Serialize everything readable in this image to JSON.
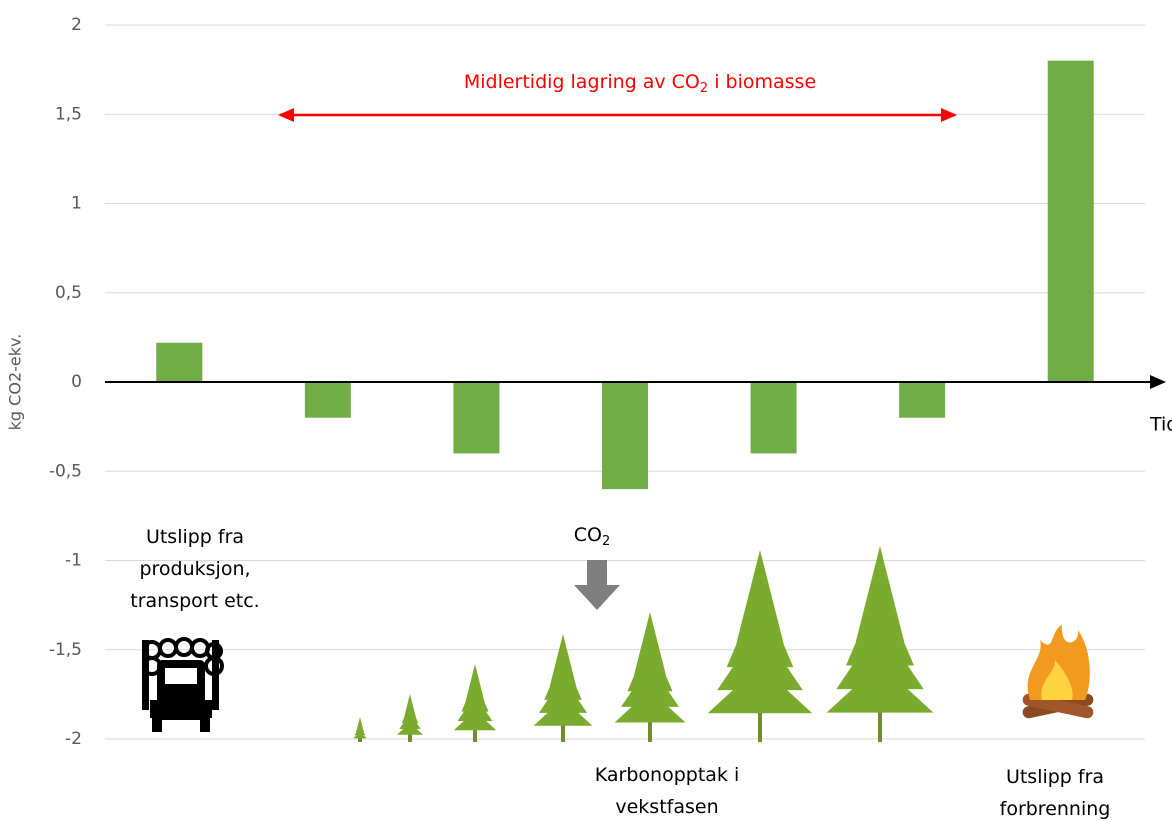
{
  "chart_data": {
    "type": "bar",
    "y_label": "kg CO2-ekv.",
    "x_label": "Tid",
    "categories": [
      null,
      null,
      null,
      null,
      null,
      null,
      null
    ],
    "values": [
      0.22,
      -0.2,
      -0.4,
      -0.6,
      -0.4,
      -0.2,
      1.8
    ],
    "color": "#70ad47",
    "ylim": [
      -2,
      2
    ],
    "yticks": [
      2,
      {
        "value": 1.5,
        "label": "1,5"
      },
      1,
      {
        "value": 0.5,
        "label": "0,5"
      },
      0,
      {
        "value": -0.5,
        "label": "-0,5"
      },
      -1,
      {
        "value": -1.5,
        "label": "-1,5"
      },
      -2
    ],
    "grid": true,
    "annotations": [
      [
        "Midlertidig lagring av CO",
        "2",
        " i biomasse"
      ],
      [
        "Utslipp fra",
        "produksjon,",
        "transport etc."
      ],
      [
        "CO",
        "2"
      ],
      [
        "Karbonopptak i",
        "vekstfasen"
      ],
      [
        "Utslipp fra",
        "forbrenning"
      ]
    ]
  }
}
